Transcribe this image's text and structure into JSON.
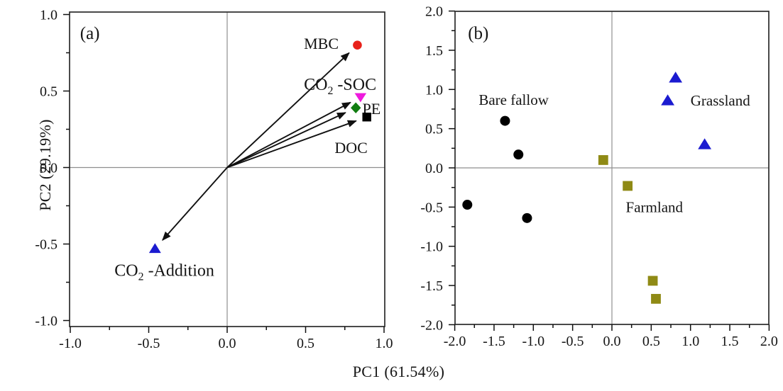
{
  "figure": {
    "xlabel": "PC1 (61.54%)",
    "ylabel": "PC2 (29.19%)",
    "background": "#ffffff",
    "frame_color": "#2b2b2b",
    "zero_line_color": "#8f8f8f",
    "text_color": "#151515"
  },
  "chart_data": [
    {
      "type": "scatter",
      "panel_label": "(a)",
      "panel_label_x": -0.875,
      "panel_label_y": 0.88,
      "xlim": [
        -1.0,
        1.0
      ],
      "ylim": [
        -1.0,
        1.0
      ],
      "x_tick_labels": [
        "-1.0",
        "-0.5",
        "0.0",
        "0.5",
        "1.0"
      ],
      "y_tick_labels": [
        "1.0",
        "0.5",
        "0.0",
        "-0.5",
        "-1.0"
      ],
      "grid": "zero-cross-lines",
      "legend_position": "none",
      "loadings": [
        {
          "name": "MBC",
          "x": 0.83,
          "y": 0.8,
          "marker": "circle",
          "color": "#e8211a",
          "label": {
            "pre": "MBC"
          },
          "label_x": 0.6,
          "label_y": 0.81
        },
        {
          "name": "CO2-SOC",
          "x": 0.85,
          "y": 0.46,
          "marker": "triangle-down",
          "color": "#ee1add",
          "label": {
            "pre": "CO",
            "sub": "2",
            "post": " -SOC"
          },
          "label_x": 0.72,
          "label_y": 0.545
        },
        {
          "name": "PE",
          "x": 0.82,
          "y": 0.39,
          "marker": "diamond",
          "color": "#117d11",
          "label": {
            "pre": "PE"
          },
          "label_x": 0.92,
          "label_y": 0.385
        },
        {
          "name": "DOC",
          "x": 0.89,
          "y": 0.33,
          "marker": "square",
          "color": "#000000",
          "label": {
            "pre": "DOC"
          },
          "label_x": 0.79,
          "label_y": 0.13
        },
        {
          "name": "CO2-Addition",
          "x": -0.46,
          "y": -0.53,
          "marker": "triangle-up",
          "color": "#1b1bd0",
          "label": {
            "pre": "CO",
            "sub": "2",
            "post": " -Addition"
          },
          "label_x": -0.4,
          "label_y": -0.67
        }
      ]
    },
    {
      "type": "scatter",
      "panel_label": "(b)",
      "panel_label_x": -1.7,
      "panel_label_y": 1.72,
      "xlim": [
        -2.0,
        2.0
      ],
      "ylim": [
        -2.0,
        2.0
      ],
      "x_tick_labels": [
        "-2.0",
        "-1.5",
        "-1.0",
        "-0.5",
        "0.0",
        "0.5",
        "1.0",
        "1.5",
        "2.0"
      ],
      "y_tick_labels": [
        "2.0",
        "1.5",
        "1.0",
        "0.5",
        "0.0",
        "-0.5",
        "-1.0",
        "-1.5",
        "-2.0"
      ],
      "grid": "zero-cross-lines",
      "legend_position": "in-plot-text",
      "series": [
        {
          "name": "Bare fallow",
          "marker": "circle",
          "color": "#000000",
          "points": [
            [
              -1.36,
              0.6
            ],
            [
              -1.19,
              0.17
            ],
            [
              -1.84,
              -0.47
            ],
            [
              -1.08,
              -0.64
            ]
          ],
          "label": {
            "pre": "Bare fallow"
          },
          "label_x": -1.25,
          "label_y": 0.87
        },
        {
          "name": "Grassland",
          "marker": "triangle-up",
          "color": "#1b1bd0",
          "points": [
            [
              0.81,
              1.15
            ],
            [
              0.71,
              0.86
            ],
            [
              1.18,
              0.3
            ]
          ],
          "label": {
            "pre": "Grassland"
          },
          "label_x": 1.38,
          "label_y": 0.86
        },
        {
          "name": "Farmland",
          "marker": "square",
          "color": "#8f8a15",
          "points": [
            [
              -0.11,
              0.1
            ],
            [
              0.2,
              -0.23
            ],
            [
              0.52,
              -1.44
            ],
            [
              0.56,
              -1.67
            ]
          ],
          "label": {
            "pre": "Farmland"
          },
          "label_x": 0.54,
          "label_y": -0.5
        }
      ]
    }
  ]
}
